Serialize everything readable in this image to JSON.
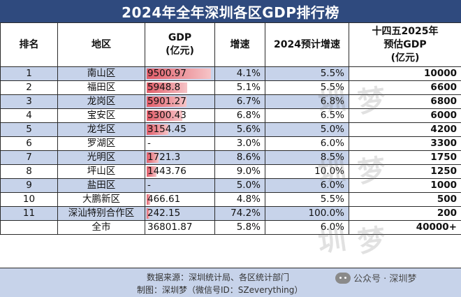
{
  "title": "2024年全年深圳各区GDP排行榜",
  "headers": {
    "rank": "排名",
    "region": "地区",
    "gdp_line1": "GDP",
    "gdp_line2": "(亿元)",
    "growth": "增速",
    "growth_2024": "2024预计增速",
    "target_line1": "十四五2025年",
    "target_line2": "预估GDP",
    "target_line3": "(亿元)"
  },
  "rows": [
    {
      "rank": "1",
      "region": "南山区",
      "gdp": "9500.97",
      "gdp_value": 9500.97,
      "growth": "4.1%",
      "growth_2024": "5.5%",
      "target": "10000"
    },
    {
      "rank": "2",
      "region": "福田区",
      "gdp": "5948.8",
      "gdp_value": 5948.8,
      "growth": "5.1%",
      "growth_2024": "5.5%",
      "target": "6600"
    },
    {
      "rank": "3",
      "region": "龙岗区",
      "gdp": "5901.27",
      "gdp_value": 5901.27,
      "growth": "6.7%",
      "growth_2024": "6.8%",
      "target": "6800"
    },
    {
      "rank": "4",
      "region": "宝安区",
      "gdp": "5300.43",
      "gdp_value": 5300.43,
      "growth": "6.8%",
      "growth_2024": "6.5%",
      "target": "6000"
    },
    {
      "rank": "5",
      "region": "龙华区",
      "gdp": "3154.45",
      "gdp_value": 3154.45,
      "growth": "5.6%",
      "growth_2024": "5.0%",
      "target": "4200"
    },
    {
      "rank": "6",
      "region": "罗湖区",
      "gdp": "-",
      "gdp_value": 0,
      "growth": "3.0%",
      "growth_2024": "6.0%",
      "target": "3300"
    },
    {
      "rank": "7",
      "region": "光明区",
      "gdp": "1721.3",
      "gdp_value": 1721.3,
      "growth": "8.6%",
      "growth_2024": "8.5%",
      "target": "1750"
    },
    {
      "rank": "8",
      "region": "坪山区",
      "gdp": "1443.76",
      "gdp_value": 1443.76,
      "growth": "9.0%",
      "growth_2024": "10.0%",
      "target": "1250"
    },
    {
      "rank": "9",
      "region": "盐田区",
      "gdp": "-",
      "gdp_value": 0,
      "growth": "5.0%",
      "growth_2024": "6.0%",
      "target": "1000"
    },
    {
      "rank": "10",
      "region": "大鹏新区",
      "gdp": "466.61",
      "gdp_value": 466.61,
      "growth": "4.8%",
      "growth_2024": "5.5%",
      "target": "500"
    },
    {
      "rank": "11",
      "region": "深汕特别合作区",
      "gdp": "242.15",
      "gdp_value": 242.15,
      "growth": "74.2%",
      "growth_2024": "100.0%",
      "target": "200"
    },
    {
      "rank": "",
      "region": "全市",
      "gdp": "36801.87",
      "gdp_value": 0,
      "growth": "5.8%",
      "growth_2024": "6.0%",
      "target": "40000+"
    }
  ],
  "footer": {
    "source": "数据来源：深圳统计局、各区统计部门",
    "maker": "制图：深圳梦（微信号ID：SZeverything）",
    "watermark": "公众号 · 深圳梦"
  },
  "colors": {
    "title_bg": "#2f4a7e",
    "row_shade": "#c7d3ea",
    "bar_start": "#e15c68",
    "bar_end": "#f6c4c7"
  }
}
